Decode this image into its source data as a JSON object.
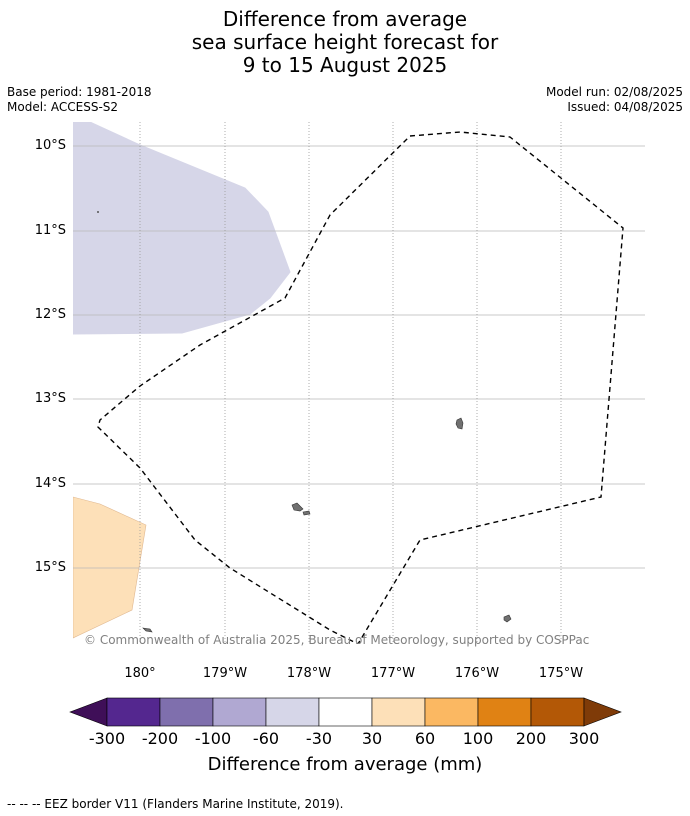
{
  "title": {
    "line1": "Difference from average",
    "line2": "sea surface height forecast for",
    "line3": "9 to 15 August 2025"
  },
  "meta_left": {
    "base_period": "Base period: 1981-2018",
    "model": "Model: ACCESS-S2"
  },
  "meta_right": {
    "model_run": "Model run: 02/08/2025",
    "issued": "Issued: 04/08/2025"
  },
  "map": {
    "lat_labels": [
      "10°S",
      "11°S",
      "12°S",
      "13°S",
      "14°S",
      "15°S"
    ],
    "lon_labels": [
      "180°",
      "179°W",
      "178°W",
      "177°W",
      "176°W",
      "175°W"
    ],
    "copyright": "© Commonwealth of Australia 2025, Bureau of Meteorology, supported by COSPPac",
    "anomaly_regions": [
      {
        "category": "-60 to -30",
        "color": "#d6d6e8"
      },
      {
        "category": "30 to 60",
        "color": "#fde0b8"
      }
    ]
  },
  "colorbar": {
    "title": "Difference from average (mm)",
    "tick_labels": [
      "-300",
      "-200",
      "-100",
      "-60",
      "-30",
      "30",
      "60",
      "100",
      "200",
      "300"
    ],
    "colors": [
      "#3f0f58",
      "#54278f",
      "#7f6fad",
      "#b0a8d2",
      "#d6d6e8",
      "#ffffff",
      "#fde0b8",
      "#fbb862",
      "#e08214",
      "#b35806",
      "#7f3b08"
    ]
  },
  "footnote": "--  --  -- EEZ border V11 (Flanders Marine Institute, 2019)."
}
